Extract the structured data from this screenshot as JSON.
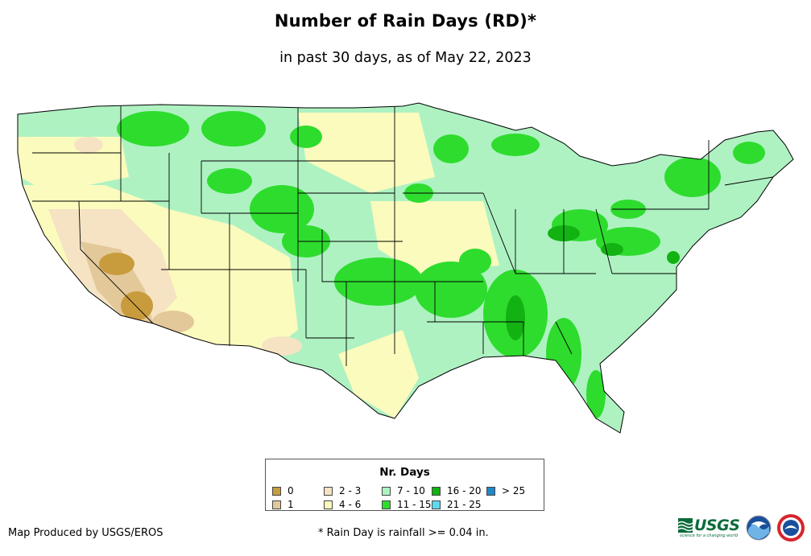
{
  "title": "Number of Rain Days (RD)*",
  "subtitle": "in past 30 days, as of May 22, 2023",
  "legend": {
    "title": "Nr. Days",
    "items": [
      {
        "label": "0",
        "color": "#c89b3c"
      },
      {
        "label": "1",
        "color": "#e3c89a"
      },
      {
        "label": "2 - 3",
        "color": "#f5e3c4"
      },
      {
        "label": "4 - 6",
        "color": "#fbfbbd"
      },
      {
        "label": "7 - 10",
        "color": "#aef2c2"
      },
      {
        "label": "11 - 15",
        "color": "#2edc2e"
      },
      {
        "label": "16 - 20",
        "color": "#13b213"
      },
      {
        "label": "21 - 25",
        "color": "#5fd9ef"
      },
      {
        "label": "> 25",
        "color": "#1f88c9"
      }
    ]
  },
  "credit": "Map Produced by USGS/EROS",
  "footnote": "* Rain Day is rainfall >= 0.04 in.",
  "logos": {
    "usgs": "USGS",
    "usgs_tagline": "science for a changing world",
    "noaa": "noaa-logo",
    "nws": "nws-logo"
  }
}
